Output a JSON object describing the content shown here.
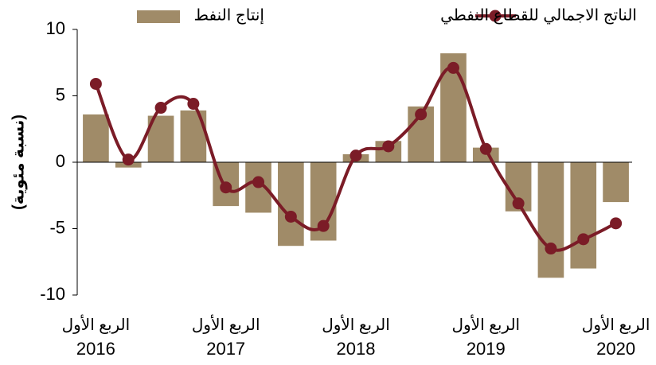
{
  "chart_data": {
    "type": "bar_line",
    "y_label": "(نسبة مئوية)",
    "categories": [
      "الربع الأول 2016",
      null,
      null,
      null,
      "الربع الأول 2017",
      null,
      null,
      null,
      "الربع الأول 2018",
      null,
      null,
      null,
      "الربع الأول 2019",
      null,
      null,
      null,
      "الربع الأول 2020"
    ],
    "series": [
      {
        "name": "إنتاج النفط",
        "type": "bar",
        "color": "#a08b68",
        "values": [
          3.6,
          -0.4,
          3.5,
          3.9,
          -3.3,
          -3.8,
          -6.3,
          -5.9,
          0.6,
          1.6,
          4.2,
          8.2,
          1.1,
          -3.7,
          -8.7,
          -8.0,
          -3.0
        ]
      },
      {
        "name": "الناتج الاجمالي للقطاع النفطي",
        "type": "line",
        "color": "#7b1c27",
        "values": [
          5.9,
          0.2,
          4.1,
          4.4,
          -1.9,
          -1.5,
          -4.1,
          -4.8,
          0.5,
          1.2,
          3.6,
          7.1,
          1.0,
          -3.1,
          -6.5,
          -5.8,
          -4.6
        ]
      }
    ],
    "ylim": [
      -10,
      10
    ],
    "yticks": [
      -10,
      -5,
      0,
      5,
      10
    ],
    "grid": false
  }
}
